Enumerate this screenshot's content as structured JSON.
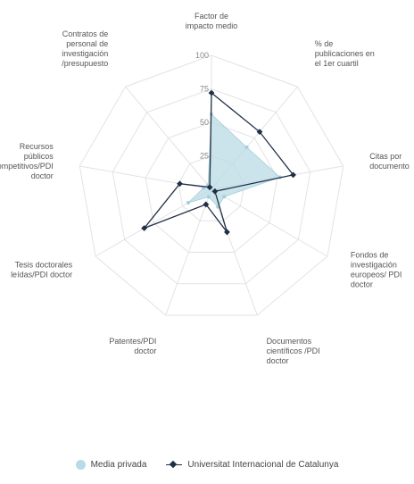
{
  "chart_data": {
    "type": "radar",
    "title": "",
    "axes": [
      {
        "lines": [
          "Factor de",
          "impacto medio"
        ]
      },
      {
        "lines": [
          "% de",
          "publicaciones en",
          "el 1er cuartil"
        ]
      },
      {
        "lines": [
          "Citas por",
          "documento"
        ]
      },
      {
        "lines": [
          "Fondos de",
          "investigación",
          "europeos/ PDI",
          "doctor"
        ]
      },
      {
        "lines": [
          "Documentos",
          "científicos /PDI",
          "doctor"
        ]
      },
      {
        "lines": [
          "Patentes/PDI",
          "doctor"
        ]
      },
      {
        "lines": [
          "Tesis doctorales",
          "leídas/PDI doctor"
        ]
      },
      {
        "lines": [
          "Recursos",
          "públicos",
          "competitivos/PDI",
          "doctor"
        ]
      },
      {
        "lines": [
          "Contratos de",
          "personal de",
          "investigación",
          "/presupuesto"
        ]
      }
    ],
    "rlim": [
      0,
      100
    ],
    "ticks": [
      "25",
      "50",
      "75",
      "100"
    ],
    "tick_values": [
      25,
      50,
      75,
      100
    ],
    "grid": true,
    "legend_position": "bottom",
    "series": [
      {
        "name": "Media privada",
        "style": "area",
        "color": "#b9dbe6",
        "values": [
          56,
          41,
          52,
          11,
          14,
          6,
          20,
          6,
          4
        ]
      },
      {
        "name": "Universitat Internacional de Catalunya",
        "style": "line-marker",
        "color": "#1f2f45",
        "values": [
          72,
          56,
          62,
          3,
          34,
          12,
          58,
          24,
          2
        ]
      }
    ]
  },
  "legend": {
    "items": [
      {
        "label": "Media privada",
        "kind": "area",
        "color": "#b9dbe6"
      },
      {
        "label": "Universitat Internacional de Catalunya",
        "kind": "line",
        "color": "#1f2f45"
      }
    ]
  }
}
